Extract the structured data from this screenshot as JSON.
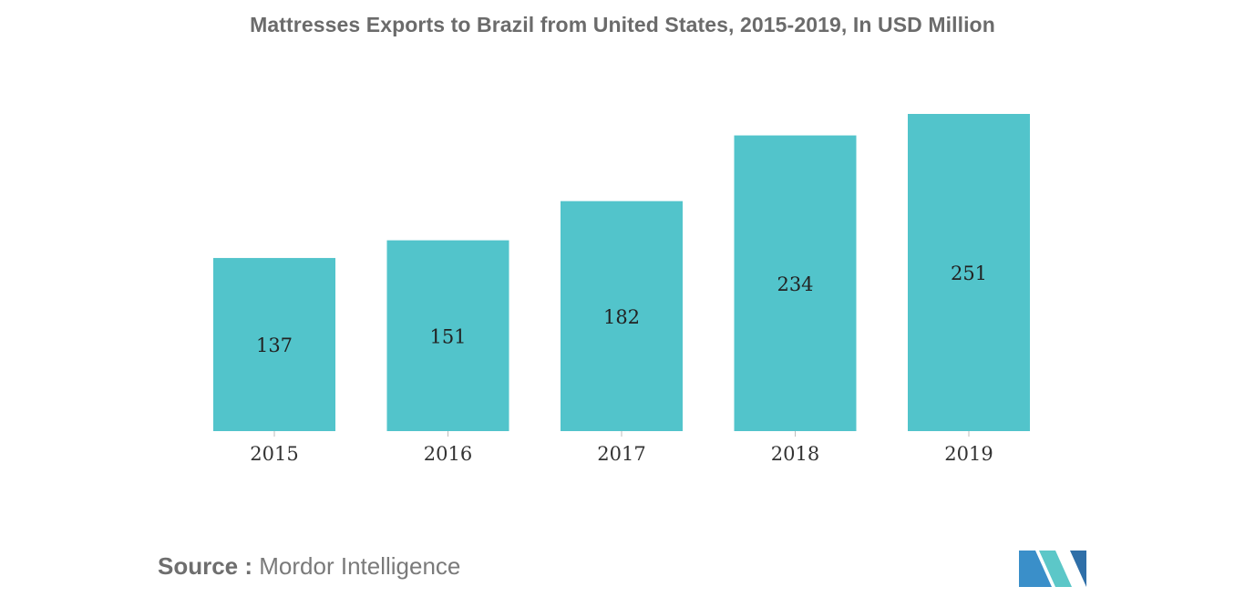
{
  "chart_data": {
    "type": "bar",
    "title": "Mattresses Exports to Brazil from United States, 2015-2019, In USD Million",
    "categories": [
      "2015",
      "2016",
      "2017",
      "2018",
      "2019"
    ],
    "values": [
      137,
      151,
      182,
      234,
      251
    ],
    "xlabel": "",
    "ylabel": "",
    "ylim": [
      0,
      251
    ],
    "grid": false,
    "legend": "none",
    "bar_color": "#52c4cb",
    "data_labels": [
      "137",
      "151",
      "182",
      "234",
      "251"
    ]
  },
  "source": {
    "label": "Source :",
    "text": "Mordor Intelligence"
  },
  "logo": {
    "name": "mordor-intelligence-logo",
    "colors": [
      "#3a8fc9",
      "#5cc7c8",
      "#2f6fa8"
    ]
  }
}
